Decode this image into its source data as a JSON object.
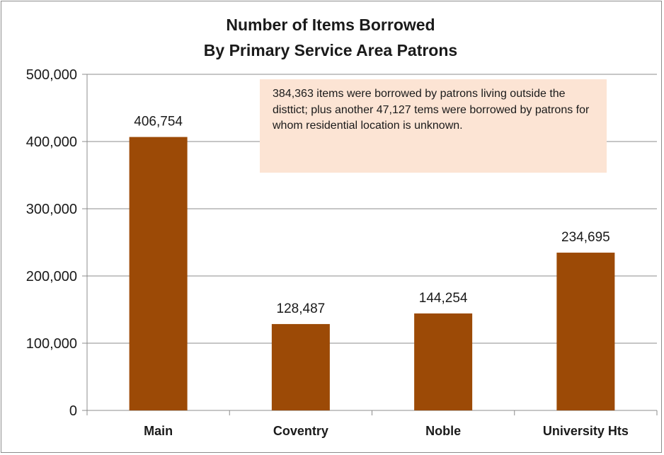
{
  "chart_data": {
    "type": "bar",
    "title": [
      "Number of Items Borrowed",
      "By Primary Service Area Patrons"
    ],
    "categories": [
      "Main",
      "Coventry",
      "Noble",
      "University Hts"
    ],
    "values": [
      406754,
      128487,
      144254,
      234695
    ],
    "data_labels": [
      "406,754",
      "128,487",
      "144,254",
      "234,695"
    ],
    "y_ticks": [
      "0",
      "100,000",
      "200,000",
      "300,000",
      "400,000",
      "500,000"
    ],
    "y_tick_values": [
      0,
      100000,
      200000,
      300000,
      400000,
      500000
    ],
    "ylim": [
      0,
      500000
    ],
    "xlabel": "",
    "ylabel": "",
    "grid": true,
    "legend": "none",
    "bar_color": "#9c4a06",
    "annotation": "384,363 items were borrowed by patrons living outside the disttict; plus another 47,127 tems were borrowed by patrons for whom residential location is unknown."
  }
}
